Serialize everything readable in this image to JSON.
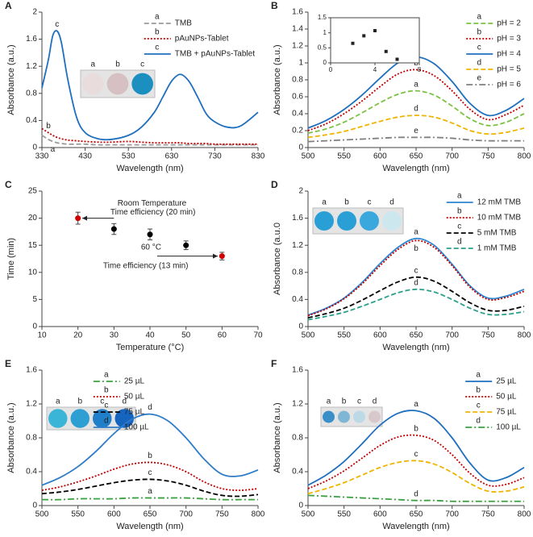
{
  "chart_data": [
    {
      "panel": "A",
      "type": "line",
      "x_label": "Wavelength (nm)",
      "y_label": "Absorbance (a.u.)",
      "xlim": [
        330,
        830
      ],
      "xticks": [
        330,
        430,
        530,
        630,
        730,
        830
      ],
      "ylim": [
        0,
        2
      ],
      "yticks": [
        0,
        0.4,
        0.8,
        1.2,
        1.6,
        2
      ],
      "x": [
        330,
        345,
        355,
        365,
        375,
        390,
        410,
        430,
        460,
        490,
        530,
        560,
        590,
        610,
        630,
        650,
        670,
        690,
        710,
        730,
        760,
        790,
        830
      ],
      "legend": "upper right",
      "series": [
        {
          "name": "TMB",
          "letter": "a",
          "letter_color": "#222",
          "color": "#9a9a9a",
          "dash": "dashed",
          "values": [
            0.18,
            0.12,
            0.09,
            0.07,
            0.06,
            0.05,
            0.05,
            0.05,
            0.04,
            0.04,
            0.04,
            0.04,
            0.04,
            0.04,
            0.04,
            0.04,
            0.04,
            0.04,
            0.04,
            0.04,
            0.04,
            0.04,
            0.04
          ]
        },
        {
          "name": "pAuNPs-Tablet",
          "letter": "b",
          "letter_color": "#222",
          "color": "#c00000",
          "dash": "dotted",
          "values": [
            0.28,
            0.22,
            0.18,
            0.15,
            0.13,
            0.11,
            0.1,
            0.09,
            0.08,
            0.08,
            0.09,
            0.08,
            0.07,
            0.07,
            0.07,
            0.07,
            0.06,
            0.06,
            0.06,
            0.05,
            0.05,
            0.05,
            0.05
          ]
        },
        {
          "name": "TMB + pAuNPs-Tablet",
          "letter": "c",
          "letter_color": "#222",
          "color": "#1f6fbf",
          "dash": "solid",
          "values": [
            0.88,
            1.3,
            1.65,
            1.72,
            1.55,
            1.0,
            0.45,
            0.22,
            0.13,
            0.12,
            0.18,
            0.3,
            0.52,
            0.75,
            0.98,
            1.08,
            0.98,
            0.75,
            0.5,
            0.38,
            0.3,
            0.32,
            0.52
          ]
        }
      ],
      "well_labels": [
        "a",
        "b",
        "c"
      ],
      "well_label_colors": [
        "#222",
        "#222",
        "#222"
      ],
      "well_colors": [
        "#e8dcdc",
        "#d6c0c4",
        "#1a8fc0"
      ]
    },
    {
      "panel": "B",
      "type": "line",
      "x_label": "Wavelength (nm)",
      "y_label": "Absorbance (a.u.)",
      "xlim": [
        500,
        800
      ],
      "xticks": [
        500,
        550,
        600,
        650,
        700,
        750,
        800
      ],
      "ylim": [
        0,
        1.6
      ],
      "yticks": [
        0,
        0.2,
        0.4,
        0.6,
        0.8,
        1,
        1.2,
        1.4,
        1.6
      ],
      "x": [
        500,
        525,
        550,
        575,
        600,
        625,
        650,
        675,
        700,
        725,
        750,
        775,
        800
      ],
      "legend": "upper right",
      "series": [
        {
          "name": "pH = 2",
          "letter": "a",
          "letter_color": "#222",
          "color": "#7cc142",
          "dash": "dashed",
          "values": [
            0.17,
            0.22,
            0.3,
            0.41,
            0.53,
            0.63,
            0.67,
            0.62,
            0.49,
            0.34,
            0.26,
            0.3,
            0.4
          ]
        },
        {
          "name": "pH = 3",
          "letter": "b",
          "letter_color": "#222",
          "color": "#c00000",
          "dash": "dotted",
          "values": [
            0.2,
            0.28,
            0.4,
            0.55,
            0.72,
            0.87,
            0.92,
            0.85,
            0.67,
            0.45,
            0.33,
            0.39,
            0.5
          ]
        },
        {
          "name": "pH = 4",
          "letter": "c",
          "letter_color": "#d00000",
          "color": "#1f6fbf",
          "dash": "solid",
          "values": [
            0.23,
            0.32,
            0.45,
            0.62,
            0.82,
            1.0,
            1.07,
            0.99,
            0.78,
            0.52,
            0.38,
            0.44,
            0.58
          ]
        },
        {
          "name": "pH = 5",
          "letter": "d",
          "letter_color": "#222",
          "color": "#f0b400",
          "dash": "dashed",
          "values": [
            0.12,
            0.15,
            0.19,
            0.25,
            0.31,
            0.36,
            0.38,
            0.36,
            0.29,
            0.2,
            0.16,
            0.18,
            0.23
          ]
        },
        {
          "name": "pH = 6",
          "letter": "e",
          "letter_color": "#222",
          "color": "#7f7f7f",
          "dash": "dashdot",
          "values": [
            0.07,
            0.08,
            0.09,
            0.1,
            0.11,
            0.12,
            0.12,
            0.12,
            0.11,
            0.09,
            0.08,
            0.08,
            0.08
          ]
        }
      ],
      "inset": {
        "type": "scatter",
        "x": [
          2,
          3,
          4,
          5,
          6
        ],
        "values": [
          0.65,
          0.9,
          1.07,
          0.38,
          0.12
        ],
        "xlim": [
          0,
          8
        ],
        "xticks": [
          0,
          4,
          8
        ],
        "ylim": [
          0,
          1.5
        ],
        "yticks": [
          0,
          0.5,
          1,
          1.5
        ]
      }
    },
    {
      "panel": "C",
      "type": "scatter",
      "x_label": "Temperature (°C)",
      "y_label": "Time (min)",
      "xlim": [
        10,
        70
      ],
      "xticks": [
        10,
        20,
        30,
        40,
        50,
        60,
        70
      ],
      "ylim": [
        0,
        25
      ],
      "yticks": [
        0,
        5,
        10,
        15,
        20,
        25
      ],
      "x": [
        20,
        30,
        40,
        50,
        60
      ],
      "values": [
        20,
        18,
        17,
        15,
        13
      ],
      "errors": [
        1.1,
        1,
        1,
        0.8,
        0.7
      ],
      "point_colors": [
        "#d00000",
        "#000000",
        "#000000",
        "#000000",
        "#d00000"
      ],
      "annotations": [
        "Room Temperature",
        "Time efficiency (20 min)",
        "60 °C",
        "Time efficiency (13 min)"
      ]
    },
    {
      "panel": "D",
      "type": "line",
      "x_label": "Wavelength (nm)",
      "y_label": "Absorbance (a.u.0",
      "xlim": [
        500,
        800
      ],
      "xticks": [
        500,
        550,
        600,
        650,
        700,
        750,
        800
      ],
      "ylim": [
        0,
        2
      ],
      "yticks": [
        0,
        0.4,
        0.8,
        1.2,
        1.6,
        2
      ],
      "x": [
        500,
        525,
        550,
        575,
        600,
        625,
        650,
        675,
        700,
        725,
        750,
        775,
        800
      ],
      "legend": "upper right",
      "series": [
        {
          "name": "12 mM  TMB",
          "letter": "a",
          "letter_color": "#222",
          "color": "#2e86d0",
          "dash": "solid",
          "values": [
            0.17,
            0.27,
            0.42,
            0.65,
            0.93,
            1.17,
            1.3,
            1.2,
            0.92,
            0.6,
            0.42,
            0.45,
            0.55
          ]
        },
        {
          "name": "10 mM  TMB",
          "letter": "b",
          "letter_color": "#d00000",
          "color": "#c00000",
          "dash": "dotted",
          "values": [
            0.16,
            0.26,
            0.41,
            0.63,
            0.9,
            1.14,
            1.27,
            1.17,
            0.9,
            0.58,
            0.4,
            0.43,
            0.52
          ]
        },
        {
          "name": "5 mM TMB",
          "letter": "c",
          "letter_color": "#222",
          "color": "#000000",
          "dash": "dashed",
          "values": [
            0.13,
            0.19,
            0.27,
            0.39,
            0.53,
            0.66,
            0.73,
            0.67,
            0.52,
            0.35,
            0.24,
            0.24,
            0.3
          ]
        },
        {
          "name": "1 mM  TMB",
          "letter": "d",
          "letter_color": "#222",
          "color": "#2aa08a",
          "dash": "dashed",
          "values": [
            0.1,
            0.15,
            0.21,
            0.3,
            0.4,
            0.5,
            0.55,
            0.51,
            0.4,
            0.27,
            0.18,
            0.18,
            0.22
          ]
        }
      ],
      "well_labels": [
        "a",
        "b",
        "c",
        "d"
      ],
      "well_label_colors": [
        "#222",
        "#d00000",
        "#222",
        "#222"
      ],
      "well_colors": [
        "#2a9fd6",
        "#2a9fd6",
        "#3aa8dd",
        "#cde7ef"
      ]
    },
    {
      "panel": "E",
      "type": "line",
      "x_label": "Wavelength (nm)",
      "y_label": "Absorbance (a.u.)",
      "xlim": [
        500,
        800
      ],
      "xticks": [
        500,
        550,
        600,
        650,
        700,
        750,
        800
      ],
      "ylim": [
        0,
        1.6
      ],
      "yticks": [
        0,
        0.4,
        0.8,
        1.2,
        1.6
      ],
      "x": [
        500,
        525,
        550,
        575,
        600,
        625,
        650,
        675,
        700,
        725,
        750,
        775,
        800
      ],
      "legend": "upper center",
      "series": [
        {
          "name": "25  µL",
          "letter": "a",
          "letter_color": "#222",
          "color": "#3aa040",
          "dash": "dashdot",
          "values": [
            0.07,
            0.07,
            0.08,
            0.08,
            0.08,
            0.09,
            0.09,
            0.09,
            0.09,
            0.08,
            0.07,
            0.07,
            0.07
          ]
        },
        {
          "name": "50  µL",
          "letter": "b",
          "letter_color": "#222",
          "color": "#c00000",
          "dash": "dotted",
          "values": [
            0.18,
            0.22,
            0.28,
            0.35,
            0.43,
            0.49,
            0.51,
            0.48,
            0.4,
            0.28,
            0.2,
            0.18,
            0.2
          ]
        },
        {
          "name": "75  µL",
          "letter": "c",
          "letter_color": "#222",
          "color": "#000000",
          "dash": "dashed",
          "values": [
            0.14,
            0.16,
            0.19,
            0.23,
            0.27,
            0.3,
            0.31,
            0.29,
            0.24,
            0.17,
            0.12,
            0.11,
            0.13
          ]
        },
        {
          "name": "100  µL",
          "letter": "d",
          "letter_color": "#d00000",
          "color": "#2e7cc7",
          "dash": "solid",
          "values": [
            0.24,
            0.33,
            0.46,
            0.64,
            0.85,
            1.02,
            1.08,
            1.0,
            0.8,
            0.55,
            0.37,
            0.35,
            0.42
          ]
        }
      ],
      "well_labels": [
        "a",
        "b",
        "c",
        "d"
      ],
      "well_label_colors": [
        "#222",
        "#222",
        "#222",
        "#d00000"
      ],
      "well_colors": [
        "#3ab5d8",
        "#2e9fd3",
        "#1f7fc8",
        "#1565c0"
      ]
    },
    {
      "panel": "F",
      "type": "line",
      "x_label": "Wavelength (nm)",
      "y_label": "Absorbance (a.u.)",
      "xlim": [
        500,
        800
      ],
      "xticks": [
        500,
        550,
        600,
        650,
        700,
        750,
        800
      ],
      "ylim": [
        0,
        1.6
      ],
      "yticks": [
        0,
        0.4,
        0.8,
        1.2,
        1.6
      ],
      "x": [
        500,
        525,
        550,
        575,
        600,
        625,
        650,
        675,
        700,
        725,
        750,
        775,
        800
      ],
      "legend": "upper right",
      "series": [
        {
          "name": "25 µL",
          "letter": "a",
          "letter_color": "#222",
          "color": "#1f6fbf",
          "dash": "solid",
          "values": [
            0.24,
            0.36,
            0.52,
            0.73,
            0.95,
            1.09,
            1.12,
            1.03,
            0.8,
            0.5,
            0.3,
            0.33,
            0.45
          ]
        },
        {
          "name": "50  µL",
          "letter": "b",
          "letter_color": "#222",
          "color": "#c00000",
          "dash": "dotted",
          "values": [
            0.2,
            0.29,
            0.41,
            0.56,
            0.71,
            0.81,
            0.83,
            0.77,
            0.6,
            0.38,
            0.24,
            0.25,
            0.33
          ]
        },
        {
          "name": "75  µL",
          "letter": "c",
          "letter_color": "#222",
          "color": "#f0b400",
          "dash": "dashed",
          "values": [
            0.14,
            0.2,
            0.27,
            0.36,
            0.45,
            0.51,
            0.53,
            0.49,
            0.39,
            0.26,
            0.17,
            0.17,
            0.22
          ]
        },
        {
          "name": "100  µL",
          "letter": "d",
          "letter_color": "#d00000",
          "color": "#3aa040",
          "dash": "dashdot",
          "values": [
            0.12,
            0.11,
            0.1,
            0.09,
            0.08,
            0.07,
            0.06,
            0.06,
            0.05,
            0.05,
            0.05,
            0.05,
            0.05
          ]
        }
      ],
      "well_labels": [
        "a",
        "b",
        "c",
        "d"
      ],
      "well_label_colors": [
        "#222",
        "#222",
        "#222",
        "#d00000"
      ],
      "well_colors": [
        "#3b8fc8",
        "#7fb6d6",
        "#bcd9e6",
        "#d8c8cc"
      ]
    }
  ]
}
